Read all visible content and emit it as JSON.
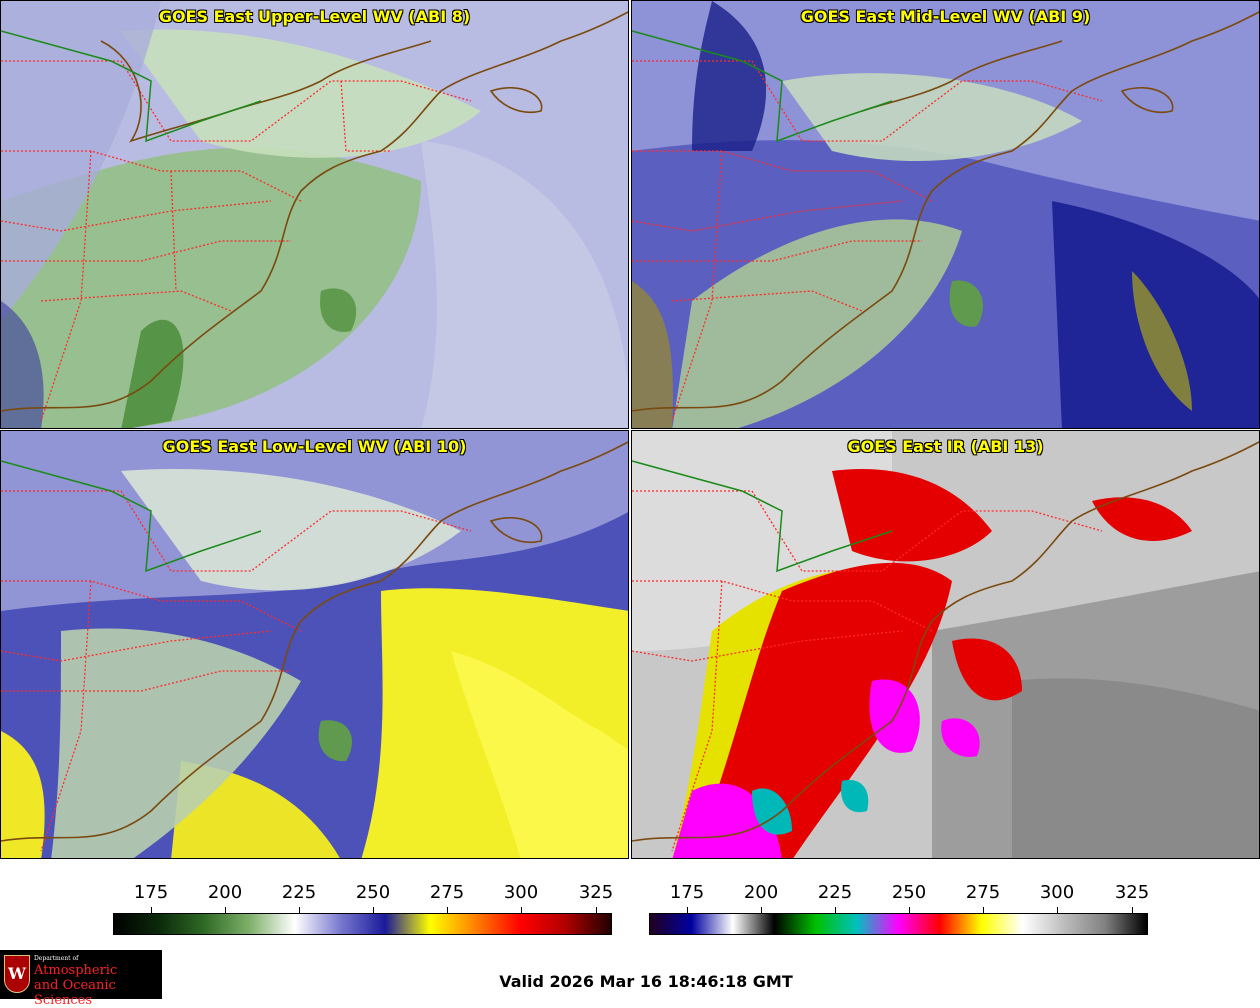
{
  "panels": [
    {
      "title": "GOES East Upper-Level WV (ABI 8)",
      "variant": "upper"
    },
    {
      "title": "GOES East Mid-Level WV (ABI 9)",
      "variant": "mid"
    },
    {
      "title": "GOES East Low-Level WV (ABI 10)",
      "variant": "low"
    },
    {
      "title": "GOES East IR (ABI 13)",
      "variant": "ir"
    }
  ],
  "colorbars": [
    {
      "name": "wv",
      "ticks": [
        "175",
        "200",
        "225",
        "250",
        "275",
        "300",
        "325"
      ],
      "gradient": [
        "#000000",
        "#0b2a0b",
        "#2f6a25",
        "#7fb06a",
        "#ffffff",
        "#7a7ad0",
        "#1a1a9a",
        "#ffff00",
        "#ff8000",
        "#ff0000",
        "#b00000",
        "#200000"
      ]
    },
    {
      "name": "ir",
      "ticks": [
        "175",
        "200",
        "225",
        "250",
        "275",
        "300",
        "325"
      ],
      "gradient": [
        "#200020",
        "#0000a0",
        "#ffffff",
        "#000000",
        "#00c000",
        "#00c0c0",
        "#ff00ff",
        "#ff0000",
        "#ffff00",
        "#ffffff",
        "#bdbdbd",
        "#808080",
        "#000000"
      ]
    }
  ],
  "footer": {
    "valid": "Valid 2026 Mar 16 18:46:18 GMT",
    "logo": {
      "line1": "Department of",
      "line2": "Atmospheric",
      "line3": "and Oceanic Sciences",
      "seal": "W"
    }
  }
}
